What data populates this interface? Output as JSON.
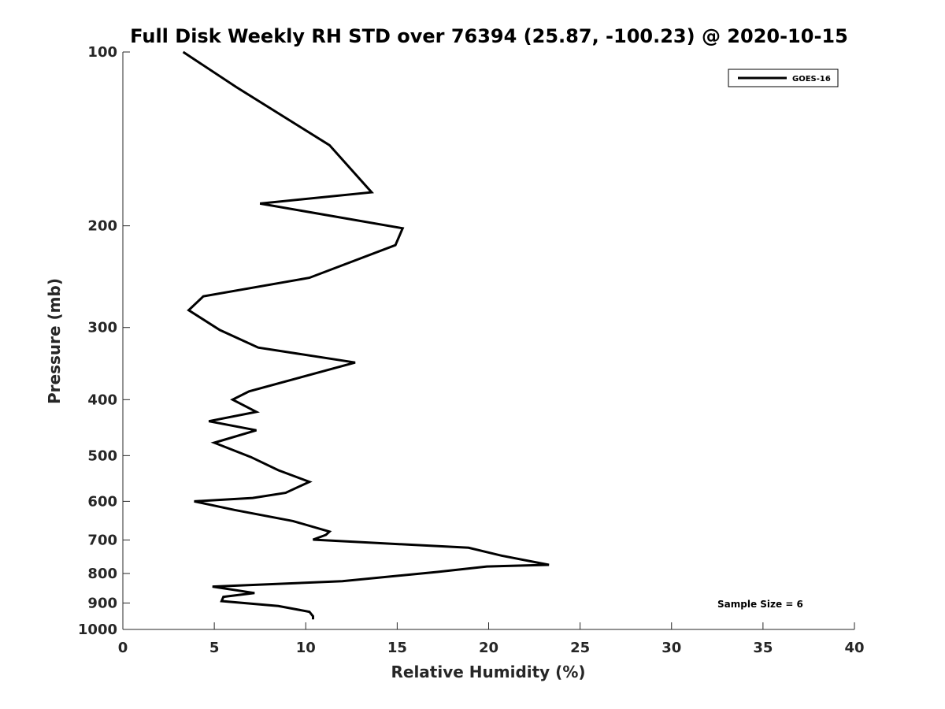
{
  "chart_data": {
    "type": "line",
    "title": "Full Disk Weekly RH STD over 76394 (25.87, -100.23) @ 2020-10-15",
    "xlabel": "Relative Humidity (%)",
    "ylabel": "Pressure (mb)",
    "xlim": [
      0,
      40
    ],
    "ylim": [
      100,
      1000
    ],
    "y_scale": "log",
    "y_reversed": true,
    "x_ticks": [
      0,
      5,
      10,
      15,
      20,
      25,
      30,
      35,
      40
    ],
    "y_ticks": [
      100,
      200,
      300,
      400,
      500,
      600,
      700,
      800,
      900,
      1000
    ],
    "grid": false,
    "legend_position": "top-right",
    "series": [
      {
        "name": "GOES-16",
        "color": "#000000",
        "x": [
          3.3,
          6.2,
          11.3,
          13.6,
          7.5,
          15.3,
          14.9,
          10.2,
          4.4,
          3.6,
          5.3,
          7.4,
          12.7,
          6.9,
          6.0,
          7.3,
          4.7,
          7.3,
          5.0,
          7.0,
          8.5,
          10.2,
          8.9,
          7.1,
          3.9,
          6.1,
          9.3,
          11.3,
          11.1,
          10.4,
          18.9,
          20.7,
          23.3,
          19.9,
          17.2,
          12.0,
          4.9,
          7.2,
          5.5,
          5.4,
          8.5,
          10.2,
          10.4,
          10.4
        ],
        "y": [
          100,
          115,
          145,
          175,
          183,
          202,
          216,
          246,
          265,
          280,
          303,
          325,
          345,
          387,
          400,
          420,
          436,
          452,
          475,
          503,
          530,
          555,
          580,
          592,
          600,
          621,
          649,
          677,
          686,
          699,
          722,
          745,
          773,
          778,
          795,
          825,
          843,
          865,
          878,
          893,
          911,
          932,
          949,
          961
        ]
      }
    ],
    "annotation": "Sample Size = 6"
  }
}
